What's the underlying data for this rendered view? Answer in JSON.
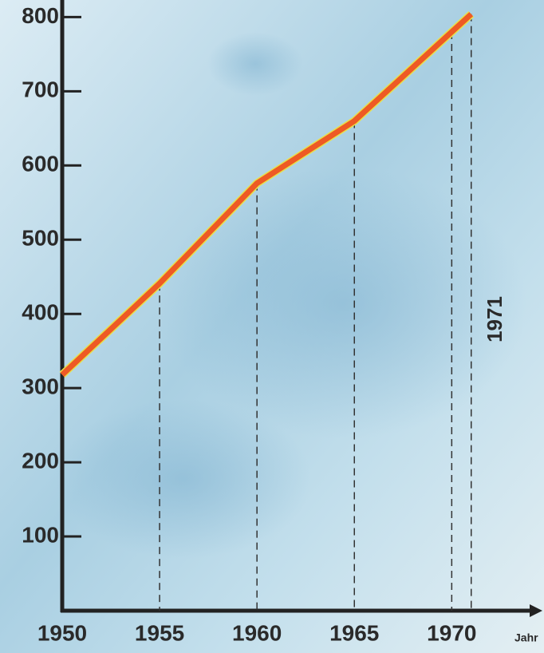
{
  "chart_data": {
    "type": "line",
    "x": [
      1950,
      1955,
      1960,
      1965,
      1970,
      1971
    ],
    "series": [
      {
        "color": "#ee5a24",
        "values": [
          318,
          441,
          576,
          660,
          780,
          804
        ]
      }
    ],
    "xlim": [
      1950,
      1974
    ],
    "ylim": [
      0,
      823
    ],
    "xticks": [
      1950,
      1955,
      1960,
      1965,
      1970
    ],
    "yticks": [
      100,
      200,
      300,
      400,
      500,
      600,
      700,
      800
    ],
    "x_label": "Jahr",
    "annotation": "1971"
  }
}
